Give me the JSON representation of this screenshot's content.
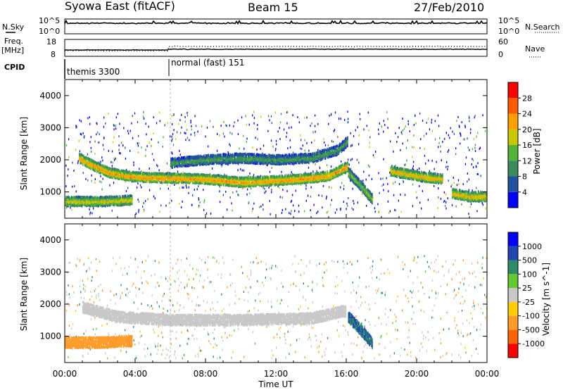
{
  "header": {
    "station": "Syowa East (fitACF)",
    "beam": "Beam 15",
    "date": "27/Feb/2010"
  },
  "panels": {
    "nsky_label": "N.Sky",
    "nsky_ticks": [
      "10^5",
      "10^0"
    ],
    "nsky_right_ticks": [
      "10^5",
      "10^0"
    ],
    "nsearch_label": "N.Search",
    "freq_label_top": "Freq.",
    "freq_label_unit": "[MHz]",
    "freq_ticks": [
      "18",
      "8"
    ],
    "nave_label": "Nave",
    "nave_ticks": [
      "60",
      "0"
    ],
    "cpid_label": "CPID",
    "cpid_segments": [
      "themis 3300",
      "normal (fast) 151"
    ]
  },
  "colors": {
    "power_scale": [
      "#0000ff",
      "#2050a0",
      "#3c8c5a",
      "#50b43c",
      "#c8c800",
      "#ffa000",
      "#ff5a00",
      "#ff0000"
    ],
    "velocity_scale": [
      "#ff0000",
      "#ff6400",
      "#ff9b28",
      "#ffcd00",
      "#c8c8c8",
      "#64c832",
      "#2d8c64",
      "#1e46b4",
      "#0000ff"
    ]
  },
  "chart_data": [
    {
      "type": "heatmap",
      "title": "",
      "xlabel": "Time UT",
      "ylabel": "Slant Range [km]",
      "colorbar_label": "Power [dB]",
      "colorbar_ticks": [
        "28",
        "24",
        "20",
        "16",
        "12",
        "8",
        "4"
      ],
      "x_ticks": [
        "00:00",
        "04:00",
        "08:00",
        "12:00",
        "16:00",
        "20:00",
        "00:00"
      ],
      "y_ticks": [
        "4000",
        "3000",
        "2000",
        "1000"
      ],
      "xlim": [
        0,
        24
      ],
      "ylim": [
        180,
        4500
      ],
      "features": [
        {
          "name": "main_band",
          "x": [
            0.8,
            1.5,
            2.5,
            3.5,
            4.5,
            6,
            8,
            10,
            12,
            14,
            15,
            16.1
          ],
          "y": [
            2050,
            1850,
            1600,
            1500,
            1450,
            1430,
            1400,
            1300,
            1350,
            1430,
            1500,
            1800
          ],
          "power": 24
        },
        {
          "name": "upper_band",
          "x": [
            6,
            7,
            8,
            10,
            12,
            14,
            15.5,
            16.1
          ],
          "y": [
            1900,
            1950,
            2000,
            2050,
            2000,
            2050,
            2300,
            2600
          ],
          "power": 12
        },
        {
          "name": "tail",
          "x": [
            16.1,
            16.8,
            17.5
          ],
          "y": [
            1600,
            1200,
            750
          ],
          "power": 16
        },
        {
          "name": "evening_band",
          "x": [
            18.5,
            19.5,
            20.5,
            21.5
          ],
          "y": [
            1650,
            1550,
            1450,
            1400
          ],
          "power": 22
        },
        {
          "name": "near_range",
          "x": [
            0,
            1,
            2,
            3,
            3.8
          ],
          "y": [
            700,
            700,
            700,
            720,
            750
          ],
          "power": 20
        },
        {
          "name": "late_near_range",
          "x": [
            22,
            23,
            24
          ],
          "y": [
            950,
            850,
            850
          ],
          "power": 22
        }
      ]
    },
    {
      "type": "heatmap",
      "title": "",
      "xlabel": "Time UT",
      "ylabel": "Slant Range [km]",
      "colorbar_label": "Velocity [m s^-1]",
      "colorbar_ticks": [
        "1000",
        "500",
        "100",
        "25",
        "-25",
        "-100",
        "-500",
        "-1000"
      ],
      "x_ticks": [
        "00:00",
        "04:00",
        "08:00",
        "12:00",
        "16:00",
        "20:00",
        "00:00"
      ],
      "y_ticks": [
        "4000",
        "3000",
        "2000",
        "1000"
      ],
      "xlim": [
        0,
        24
      ],
      "ylim": [
        180,
        4500
      ],
      "features": [
        {
          "name": "ground_scatter",
          "x": [
            1,
            3,
            6,
            10,
            14,
            16
          ],
          "y": [
            1900,
            1600,
            1500,
            1500,
            1550,
            1800
          ],
          "velocity": 0
        },
        {
          "name": "tail",
          "x": [
            16.1,
            16.8,
            17.5
          ],
          "y": [
            1600,
            1200,
            750
          ],
          "velocity": 500
        },
        {
          "name": "near_range",
          "x": [
            0,
            2,
            3.8
          ],
          "y": [
            800,
            800,
            850
          ],
          "velocity": -300
        }
      ]
    }
  ]
}
